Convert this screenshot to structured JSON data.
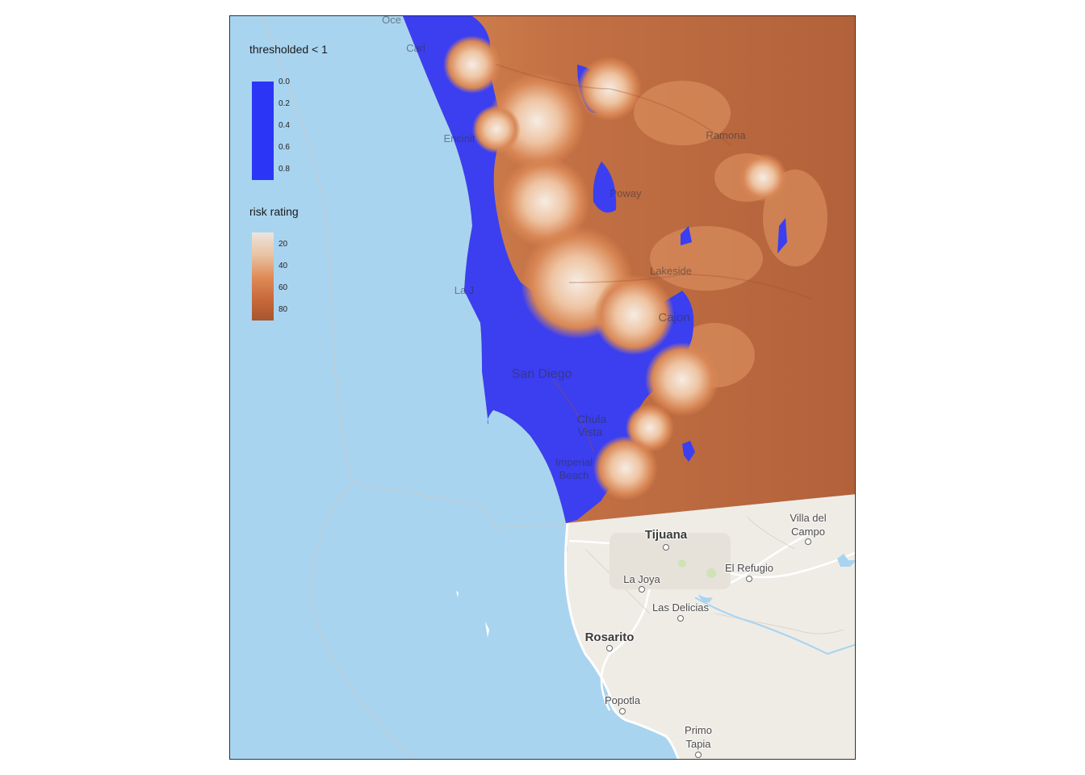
{
  "legends": {
    "threshold": {
      "title": "thresholded < 1",
      "color": "#2b35f5",
      "ticks": [
        "0.0",
        "0.2",
        "0.4",
        "0.6",
        "0.8"
      ]
    },
    "risk": {
      "title": "risk rating",
      "gradient": [
        "#ece4dd",
        "#e9c4a5",
        "#e08d5a",
        "#c96a3a",
        "#a85530"
      ],
      "ticks": [
        "20",
        "40",
        "60",
        "80"
      ]
    }
  },
  "colors": {
    "ocean": "#a8d4f0",
    "land": "#efece6",
    "risk_dark": "#b2613a",
    "risk_mid": "#d2814f",
    "risk_light": "#f0d8c4",
    "threshold_blue": "#3b3ff0"
  },
  "places": {
    "oceanside": "Oce",
    "carlsbad": "Carl",
    "encinitas": "Encinit",
    "ramona": "Ramona",
    "poway": "Poway",
    "la_jolla_us": "La J",
    "cajon": "Cajon",
    "lakeside": "Lakeside",
    "san_diego": "San Diego",
    "chula_vista_1": "Chula",
    "chula_vista_2": "Vista",
    "imperial_1": "Imperial",
    "imperial_2": "Beach",
    "tijuana": "Tijuana",
    "villa_del_campo_1": "Villa del",
    "villa_del_campo_2": "Campo",
    "el_refugio": "El Refugio",
    "la_joya": "La Joya",
    "las_delicias": "Las Delicias",
    "rosarito": "Rosarito",
    "popotla": "Popotla",
    "primo_tapia_1": "Primo",
    "primo_tapia_2": "Tapia"
  }
}
